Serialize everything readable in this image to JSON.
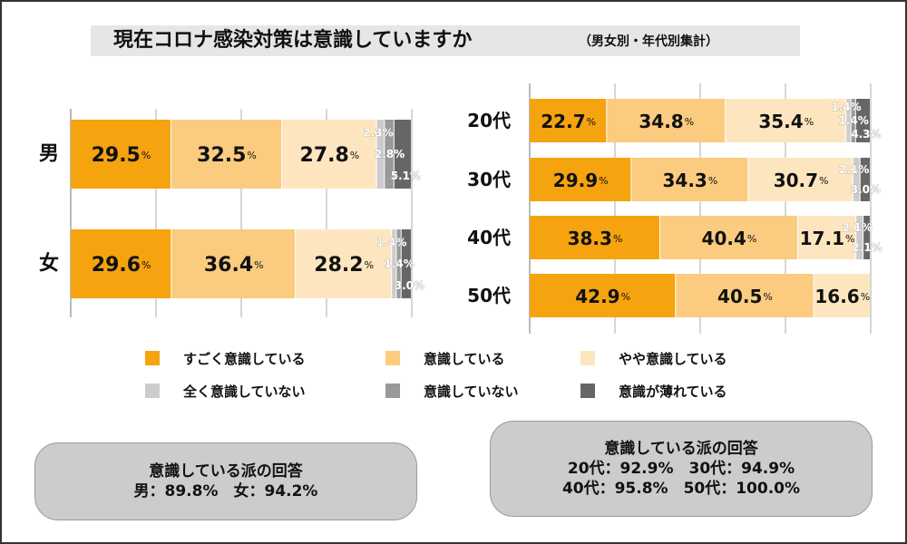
{
  "title": "現在コロナ感染対策は意識していますか",
  "subtitle": "（男女別・年代別集計）",
  "legend": [
    {
      "label": "すごく意識している",
      "color": "#f5a30f"
    },
    {
      "label": "意識している",
      "color": "#fbcb7f"
    },
    {
      "label": "やや意識している",
      "color": "#fde6bf"
    },
    {
      "label": "全く意識していない",
      "color": "#cccccc"
    },
    {
      "label": "意識していない",
      "color": "#999999"
    },
    {
      "label": "意識が薄れている",
      "color": "#666666"
    }
  ],
  "chart_data": [
    {
      "type": "bar",
      "orientation": "horizontal",
      "stacked": true,
      "categories": [
        "男",
        "女"
      ],
      "series": [
        {
          "name": "すごく意識している",
          "values": [
            29.5,
            29.6
          ]
        },
        {
          "name": "意識している",
          "values": [
            32.5,
            36.4
          ]
        },
        {
          "name": "やや意識している",
          "values": [
            27.8,
            28.2
          ]
        },
        {
          "name": "全く意識していない",
          "values": [
            2.3,
            1.4
          ]
        },
        {
          "name": "意識していない",
          "values": [
            2.8,
            1.4
          ]
        },
        {
          "name": "意識が薄れている",
          "values": [
            5.1,
            3.0
          ]
        }
      ],
      "xlim": [
        0,
        100
      ],
      "unit": "%"
    },
    {
      "type": "bar",
      "orientation": "horizontal",
      "stacked": true,
      "categories": [
        "20代",
        "30代",
        "40代",
        "50代"
      ],
      "series": [
        {
          "name": "すごく意識している",
          "values": [
            22.7,
            29.9,
            38.3,
            42.9
          ]
        },
        {
          "name": "意識している",
          "values": [
            34.8,
            34.3,
            40.4,
            40.5
          ]
        },
        {
          "name": "やや意識している",
          "values": [
            35.4,
            30.7,
            17.1,
            16.6
          ]
        },
        {
          "name": "全く意識していない",
          "values": [
            1.4,
            2.1,
            2.1,
            0
          ]
        },
        {
          "name": "意識していない",
          "values": [
            1.4,
            0,
            0,
            0
          ]
        },
        {
          "name": "意識が薄れている",
          "values": [
            4.3,
            3.0,
            2.1,
            0
          ]
        }
      ],
      "xlim": [
        0,
        100
      ],
      "unit": "%"
    }
  ],
  "summary_gender": {
    "title": "意識している派の回答",
    "line1": "男：89.8%　女：94.2%"
  },
  "summary_age": {
    "title": "意識している派の回答",
    "line1": "20代：92.9%　30代：94.9%",
    "line2": "40代：95.8%　50代：100.0%"
  }
}
